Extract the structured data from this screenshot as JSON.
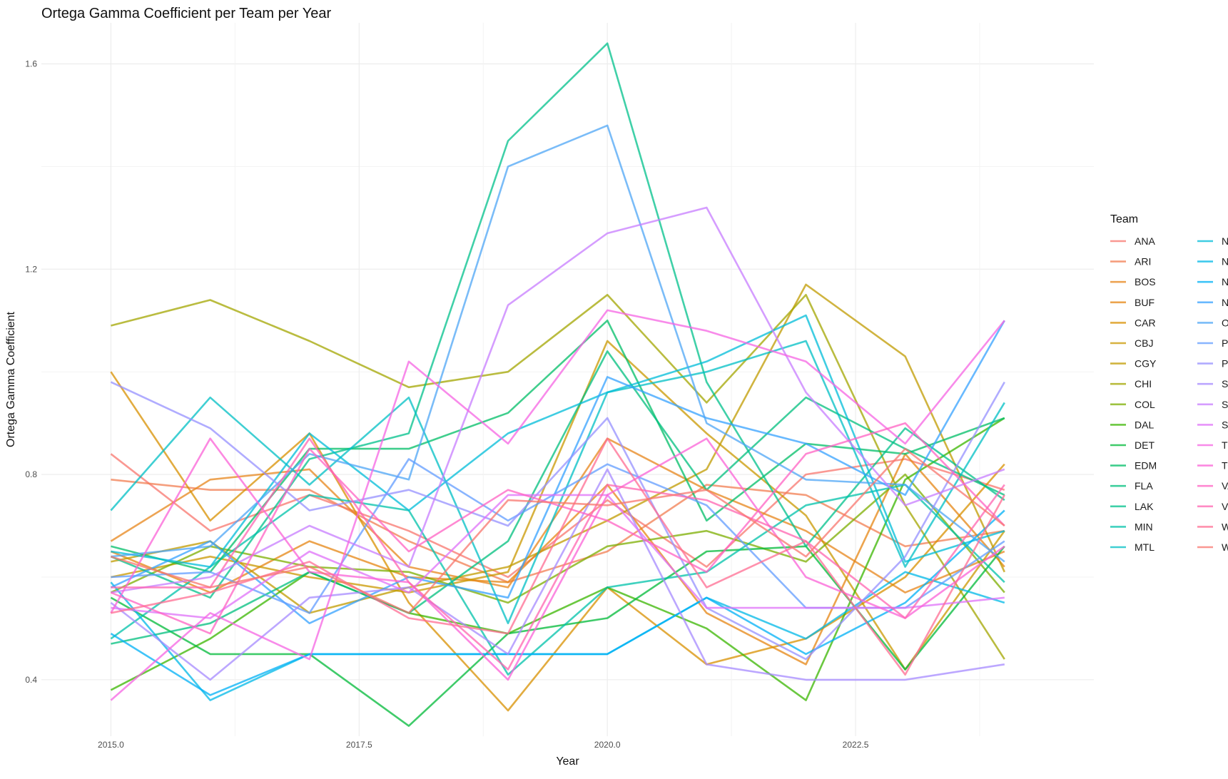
{
  "chart_data": {
    "type": "line",
    "title": "Ortega Gamma Coefficient per Team per Year",
    "xlabel": "Year",
    "ylabel": "Ortega Gamma Coefficient",
    "x": [
      2015,
      2016,
      2017,
      2018,
      2019,
      2020,
      2021,
      2022,
      2023,
      2024
    ],
    "x_ticks": [
      2015.0,
      2017.5,
      2020.0,
      2022.5
    ],
    "x_tick_labels": [
      "2015.0",
      "2017.5",
      "2020.0",
      "2022.5"
    ],
    "xlim": [
      2014.3,
      2024.9
    ],
    "y_ticks": [
      0.4,
      0.8,
      1.2,
      1.6
    ],
    "y_tick_labels": [
      "0.4",
      "0.8",
      "1.2",
      "1.6"
    ],
    "ylim": [
      0.29,
      1.68
    ],
    "grid": true,
    "legend": {
      "title": "Team",
      "position": "right",
      "columns": 2
    },
    "series": [
      {
        "name": "ANA",
        "color": "#F8766D",
        "values": [
          0.84,
          0.69,
          0.76,
          0.69,
          0.6,
          0.75,
          0.62,
          0.8,
          0.83,
          0.77
        ]
      },
      {
        "name": "ARI",
        "color": "#F27D52",
        "values": [
          0.79,
          0.77,
          0.77,
          0.67,
          0.59,
          0.65,
          0.78,
          0.76,
          0.66,
          0.69
        ]
      },
      {
        "name": "BOS",
        "color": "#E7861B",
        "values": [
          0.67,
          0.79,
          0.81,
          0.62,
          0.58,
          0.87,
          0.77,
          0.69,
          0.57,
          0.65
        ]
      },
      {
        "name": "BUF",
        "color": "#E68613",
        "values": [
          0.65,
          0.57,
          0.67,
          0.6,
          0.59,
          0.78,
          0.53,
          0.43,
          0.84,
          0.62
        ]
      },
      {
        "name": "CAR",
        "color": "#D89000",
        "values": [
          1.0,
          0.71,
          0.88,
          0.55,
          0.34,
          0.58,
          0.43,
          0.48,
          0.6,
          0.82
        ]
      },
      {
        "name": "CBJ",
        "color": "#C99800",
        "values": [
          0.6,
          0.64,
          0.6,
          0.57,
          0.61,
          1.06,
          0.88,
          0.72,
          0.42,
          0.69
        ]
      },
      {
        "name": "CGY",
        "color": "#C09B00",
        "values": [
          0.63,
          0.67,
          0.53,
          0.58,
          0.62,
          0.71,
          0.81,
          1.17,
          1.03,
          0.61
        ]
      },
      {
        "name": "CHI",
        "color": "#A3A500",
        "values": [
          1.09,
          1.14,
          1.06,
          0.97,
          1.0,
          1.15,
          0.94,
          1.15,
          0.74,
          0.44
        ]
      },
      {
        "name": "COL",
        "color": "#7CAE00",
        "values": [
          0.57,
          0.66,
          0.62,
          0.61,
          0.55,
          0.66,
          0.69,
          0.63,
          0.8,
          0.57
        ]
      },
      {
        "name": "DAL",
        "color": "#39B600",
        "values": [
          0.38,
          0.48,
          0.61,
          0.53,
          0.49,
          0.58,
          0.5,
          0.36,
          0.79,
          0.91
        ]
      },
      {
        "name": "DET",
        "color": "#00BA38",
        "values": [
          0.56,
          0.45,
          0.45,
          0.31,
          0.49,
          0.52,
          0.65,
          0.66,
          0.42,
          0.66
        ]
      },
      {
        "name": "EDM",
        "color": "#00BE67",
        "values": [
          0.66,
          0.61,
          0.85,
          0.85,
          0.92,
          1.1,
          0.71,
          0.86,
          0.84,
          0.91
        ]
      },
      {
        "name": "FLA",
        "color": "#00BF7D",
        "values": [
          0.47,
          0.51,
          0.61,
          0.53,
          0.67,
          1.04,
          0.77,
          0.95,
          0.85,
          0.76
        ]
      },
      {
        "name": "LAK",
        "color": "#00C08B",
        "values": [
          0.64,
          0.56,
          0.83,
          0.88,
          1.45,
          1.64,
          0.98,
          0.66,
          0.89,
          0.75
        ]
      },
      {
        "name": "MIN",
        "color": "#00C1A9",
        "values": [
          0.48,
          0.62,
          0.76,
          0.73,
          0.41,
          0.58,
          0.61,
          0.74,
          0.78,
          0.59
        ]
      },
      {
        "name": "MTL",
        "color": "#00BFC4",
        "values": [
          0.73,
          0.95,
          0.78,
          0.95,
          0.51,
          0.96,
          1.0,
          1.06,
          0.62,
          0.94
        ]
      },
      {
        "name": "NJD",
        "color": "#00BCD8",
        "values": [
          0.65,
          0.62,
          0.88,
          0.73,
          0.88,
          0.96,
          1.02,
          1.11,
          0.63,
          0.69
        ]
      },
      {
        "name": "NSH",
        "color": "#00B8E7",
        "values": [
          0.59,
          0.36,
          0.45,
          0.45,
          0.45,
          0.45,
          0.56,
          0.48,
          0.61,
          0.55
        ]
      },
      {
        "name": "NYI",
        "color": "#00B0F6",
        "values": [
          0.49,
          0.37,
          0.45,
          0.45,
          0.45,
          0.45,
          0.56,
          0.45,
          0.55,
          0.73
        ]
      },
      {
        "name": "NYR",
        "color": "#35A2FF",
        "values": [
          0.58,
          0.67,
          0.51,
          0.6,
          0.56,
          0.99,
          0.91,
          0.86,
          0.76,
          1.1
        ]
      },
      {
        "name": "OTT",
        "color": "#4EA6F5",
        "values": [
          0.64,
          0.66,
          0.84,
          0.79,
          1.4,
          1.48,
          0.9,
          0.79,
          0.78,
          0.63
        ]
      },
      {
        "name": "PHI",
        "color": "#619CFF",
        "values": [
          0.6,
          0.61,
          0.53,
          0.83,
          0.71,
          0.82,
          0.74,
          0.54,
          0.54,
          0.67
        ]
      },
      {
        "name": "PIT",
        "color": "#9590FF",
        "values": [
          0.98,
          0.89,
          0.73,
          0.77,
          0.7,
          0.91,
          0.54,
          0.44,
          0.64,
          0.98
        ]
      },
      {
        "name": "SEA",
        "color": "#A58AFF",
        "values": [
          0.55,
          0.4,
          0.56,
          0.58,
          0.45,
          0.81,
          0.43,
          0.4,
          0.4,
          0.43
        ]
      },
      {
        "name": "SJS",
        "color": "#C77CFF",
        "values": [
          0.57,
          0.6,
          0.7,
          0.62,
          1.13,
          1.27,
          1.32,
          0.96,
          0.74,
          0.81
        ]
      },
      {
        "name": "STL",
        "color": "#DF70F8",
        "values": [
          0.54,
          0.52,
          0.65,
          0.57,
          0.76,
          0.76,
          0.54,
          0.54,
          0.54,
          0.56
        ]
      },
      {
        "name": "TBL",
        "color": "#F564E3",
        "values": [
          0.36,
          0.53,
          0.44,
          1.02,
          0.86,
          1.12,
          1.08,
          1.02,
          0.86,
          1.1
        ]
      },
      {
        "name": "TOR",
        "color": "#FB61D7",
        "values": [
          0.53,
          0.87,
          0.61,
          0.59,
          0.4,
          0.76,
          0.87,
          0.6,
          0.52,
          0.66
        ]
      },
      {
        "name": "VAN",
        "color": "#FF61C3",
        "values": [
          0.57,
          0.49,
          0.85,
          0.65,
          0.77,
          0.71,
          0.61,
          0.84,
          0.9,
          0.7
        ]
      },
      {
        "name": "VGK",
        "color": "#FF64B0",
        "values": [
          0.58,
          0.58,
          0.87,
          0.59,
          0.42,
          0.78,
          0.75,
          0.67,
          0.52,
          0.78
        ]
      },
      {
        "name": "WAS",
        "color": "#FF6C91",
        "values": [
          0.53,
          0.57,
          0.63,
          0.52,
          0.49,
          0.87,
          0.58,
          0.67,
          0.41,
          0.76
        ]
      },
      {
        "name": "WPG",
        "color": "#F8766D",
        "values": [
          0.64,
          0.58,
          0.62,
          0.53,
          0.75,
          0.74,
          0.77,
          0.64,
          0.85,
          0.7
        ]
      }
    ]
  }
}
